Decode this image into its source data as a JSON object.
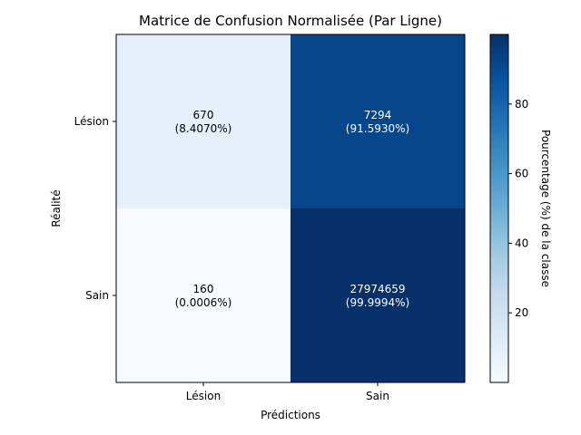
{
  "chart_data": {
    "type": "heatmap",
    "title": "Matrice de Confusion Normalisée (Par Ligne)",
    "xlabel": "Prédictions",
    "ylabel": "Réalité",
    "x_categories": [
      "Lésion",
      "Sain"
    ],
    "y_categories": [
      "Lésion",
      "Sain"
    ],
    "cells": [
      [
        {
          "count": "670",
          "percent_label": "(8.4070%)",
          "percent": 8.407
        },
        {
          "count": "7294",
          "percent_label": "(91.5930%)",
          "percent": 91.593
        }
      ],
      [
        {
          "count": "160",
          "percent_label": "(0.0006%)",
          "percent": 0.0006
        },
        {
          "count": "27974659",
          "percent_label": "(99.9994%)",
          "percent": 99.9994
        }
      ]
    ],
    "colorbar": {
      "label": "Pourcentage (%) de la classe",
      "ticks": [
        "20",
        "40",
        "60",
        "80"
      ],
      "tick_values": [
        20,
        40,
        60,
        80
      ],
      "vmin": 0.0006,
      "vmax": 99.9994,
      "colormap": "Blues"
    }
  }
}
